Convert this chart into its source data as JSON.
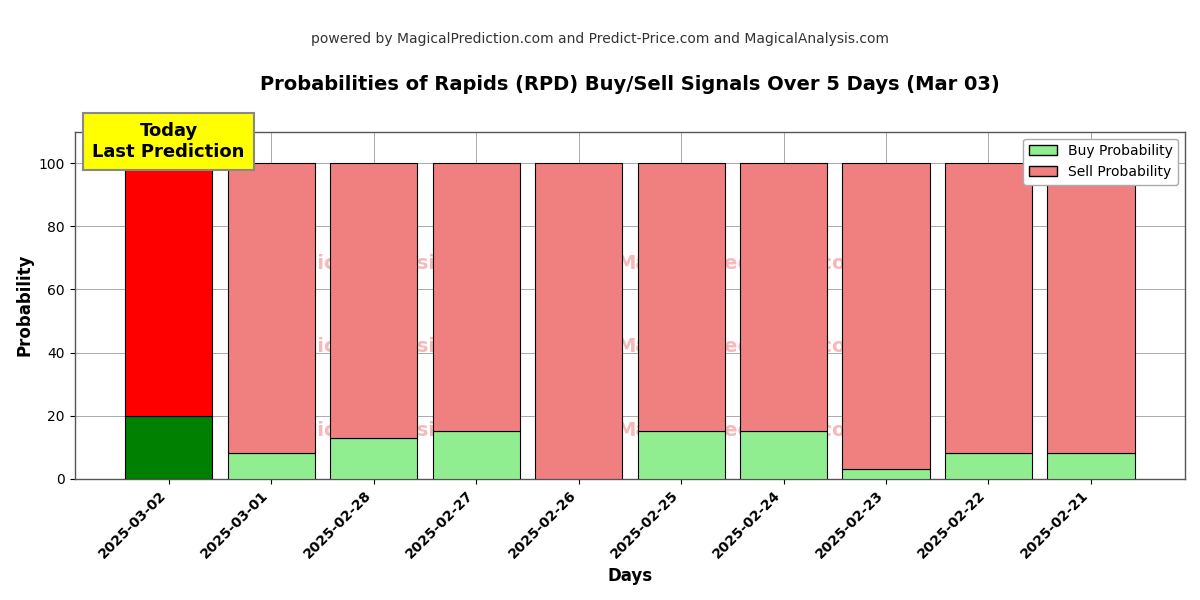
{
  "title": "Probabilities of Rapids (RPD) Buy/Sell Signals Over 5 Days (Mar 03)",
  "subtitle": "powered by MagicalPrediction.com and Predict-Price.com and MagicalAnalysis.com",
  "xlabel": "Days",
  "ylabel": "Probability",
  "dates": [
    "2025-03-02",
    "2025-03-01",
    "2025-02-28",
    "2025-02-27",
    "2025-02-26",
    "2025-02-25",
    "2025-02-24",
    "2025-02-23",
    "2025-02-22",
    "2025-02-21"
  ],
  "buy_probs": [
    20,
    8,
    13,
    15,
    0,
    15,
    15,
    3,
    8,
    8
  ],
  "sell_probs": [
    80,
    92,
    87,
    85,
    100,
    85,
    85,
    97,
    92,
    92
  ],
  "today_buy_color": "#008000",
  "today_sell_color": "#ff0000",
  "other_buy_color": "#90EE90",
  "other_sell_color": "#F08080",
  "today_label_bg": "#ffff00",
  "today_label_text": "Today\nLast Prediction",
  "legend_buy_label": "Buy Probability",
  "legend_sell_label": "Sell Probability",
  "ylim": [
    0,
    110
  ],
  "dashed_line_y": 110,
  "bar_edgecolor": "#000000",
  "bar_linewidth": 0.8,
  "background_color": "#ffffff",
  "grid_color": "#aaaaaa",
  "bar_width": 0.85
}
